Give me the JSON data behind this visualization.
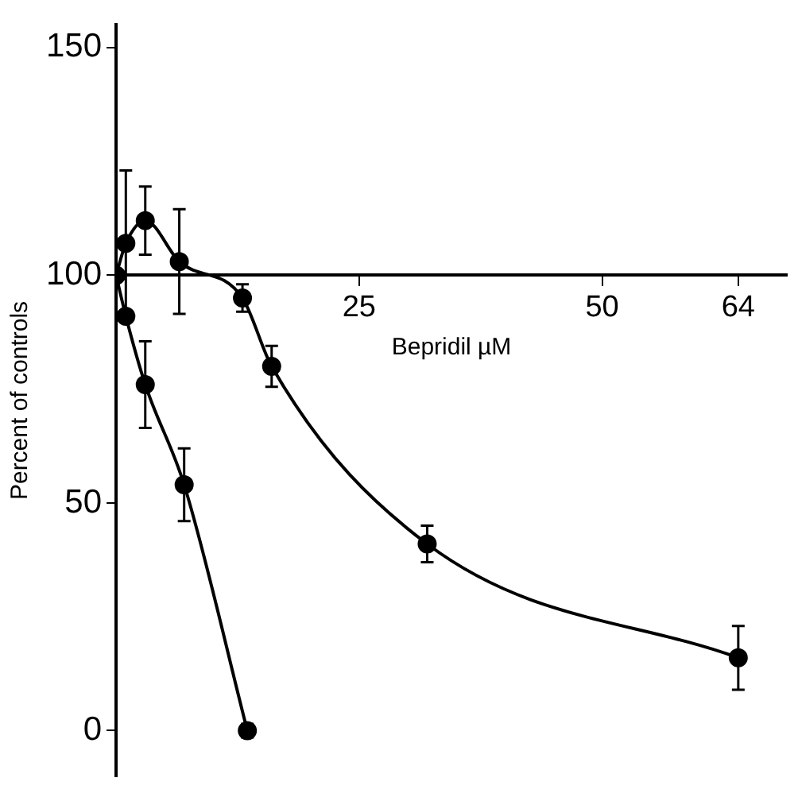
{
  "chart_data": {
    "type": "line",
    "xlabel": "Bepridil µM",
    "ylabel": "Percent of controls",
    "xlim": [
      0,
      69
    ],
    "xticks": [
      25,
      50,
      64
    ],
    "ylim": [
      -10,
      155
    ],
    "yticks": [
      0,
      50,
      100,
      150
    ],
    "grid": false,
    "legend": false,
    "marker": "circle",
    "line_style": "solid",
    "series": [
      {
        "color": "#000000",
        "x": [
          0,
          1,
          3,
          6.5,
          13,
          16,
          32,
          64
        ],
        "values": [
          100,
          107,
          112,
          103,
          95,
          80,
          41,
          16
        ],
        "errors": [
          null,
          16,
          7.5,
          11.5,
          3,
          4.5,
          4,
          7
        ]
      },
      {
        "color": "#000000",
        "x": [
          0,
          1,
          3,
          7,
          13.5
        ],
        "values": [
          100,
          91,
          76,
          54,
          0
        ],
        "errors": [
          null,
          null,
          9.5,
          8,
          1.5
        ]
      }
    ]
  }
}
